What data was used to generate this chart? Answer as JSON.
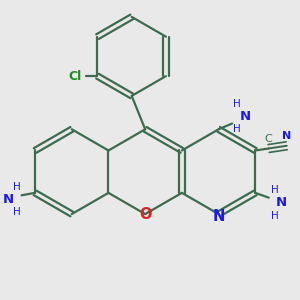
{
  "background_color": "#e9e9e9",
  "bond_color": "#3d6b4f",
  "bond_width": 1.6,
  "dbo": 0.055,
  "atom_colors": {
    "N": "#1a1aee",
    "O": "#dd2222",
    "Cl": "#228822",
    "C": "#3d6b4f"
  },
  "font_size": 9.5,
  "figsize": [
    3.0,
    3.0
  ],
  "dpi": 100,
  "xlim": [
    -3.0,
    3.2
  ],
  "ylim": [
    -2.8,
    3.0
  ]
}
